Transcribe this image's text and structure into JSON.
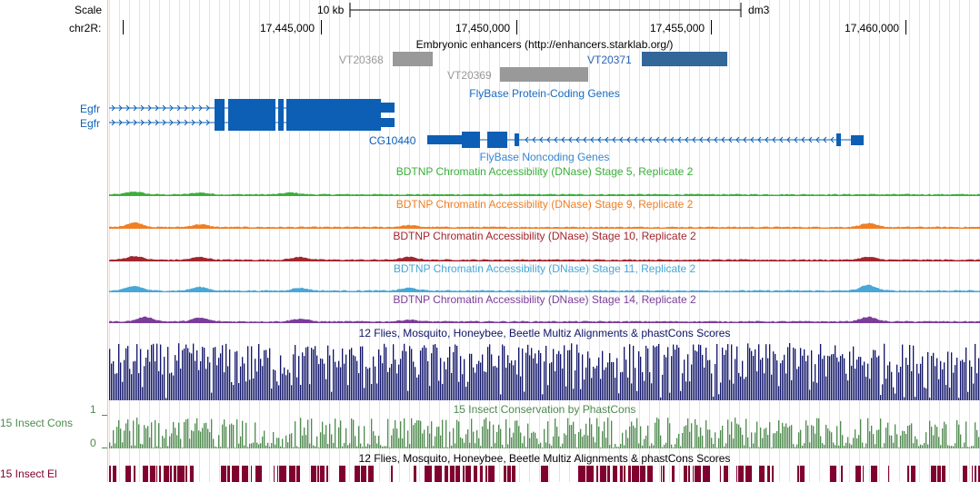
{
  "ruler": {
    "scale_label": "Scale",
    "scale_value": "10 kb",
    "assembly": "dm3",
    "chrom_label": "chr2R:",
    "positions": [
      "17,445,000",
      "17,450,000",
      "17,455,000",
      "17,460,000"
    ]
  },
  "enhancers": {
    "title": "Embryonic enhancers (http://enhancers.starklab.org/)",
    "items": [
      {
        "name": "VT20368",
        "color": "#999999"
      },
      {
        "name": "VT20369",
        "color": "#999999"
      },
      {
        "name": "VT20371",
        "color": "#336699"
      }
    ]
  },
  "genes": {
    "title": "FlyBase Protein-Coding Genes",
    "color": "#0c5fb5",
    "items": [
      {
        "name": "Egfr"
      },
      {
        "name": "Egfr"
      },
      {
        "name": "CG10440"
      }
    ]
  },
  "noncoding": {
    "title": "FlyBase Noncoding Genes"
  },
  "dnase": [
    {
      "title": "BDTNP Chromatin Accessibility (DNase) Stage 5, Replicate 2",
      "color": "#3cae3c"
    },
    {
      "title": "BDTNP Chromatin Accessibility (DNase) Stage 9, Replicate 2",
      "color": "#f07f24"
    },
    {
      "title": "BDTNP Chromatin Accessibility (DNase) Stage 10, Replicate 2",
      "color": "#a3262e"
    },
    {
      "title": "BDTNP Chromatin Accessibility (DNase) Stage 11, Replicate 2",
      "color": "#48a7d6"
    },
    {
      "title": "BDTNP Chromatin Accessibility (DNase) Stage 14, Replicate 2",
      "color": "#7b3d9a"
    }
  ],
  "multiz": {
    "title": "12 Flies, Mosquito, Honeybee, Beetle Multiz Alignments & phastCons Scores",
    "color": "#101468"
  },
  "phastcons": {
    "title": "15 Insect Conservation by PhastCons",
    "side_label": "15 Insect Cons",
    "ymax_label": "1",
    "ymin_label": "0",
    "color": "#4e8a4e"
  },
  "elements": {
    "title": "12 Flies, Mosquito, Honeybee, Beetle Multiz Alignments & phastCons Scores",
    "side_label": "15 Insect El",
    "color": "#800030"
  }
}
